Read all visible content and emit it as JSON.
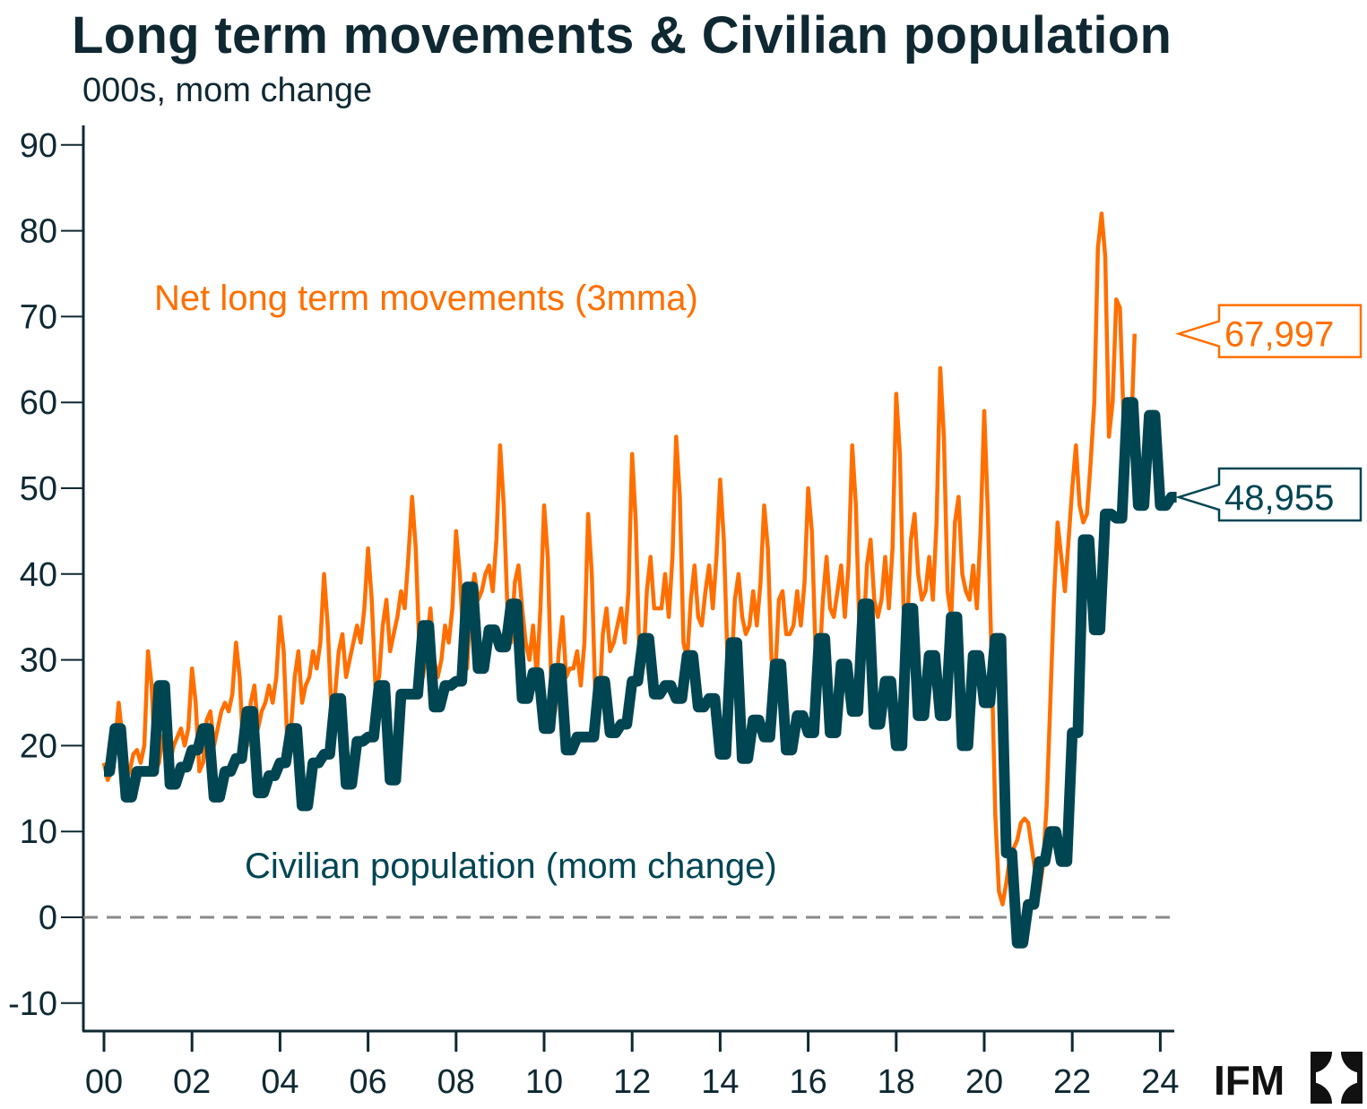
{
  "title": "Long term movements & Civilian population",
  "subtitle": "000s, mom change",
  "logo": {
    "text": "IFM",
    "icon": "ifm-logo-icon"
  },
  "colors": {
    "net_ltm": "#ff6f00",
    "civilian": "#004552",
    "axis": "#0f2832",
    "zero_line": "#8a8a8a"
  },
  "chart_data": {
    "type": "line",
    "title": "Long term movements & Civilian population",
    "subtitle": "000s, mom change",
    "xlabel": "",
    "ylabel": "000s, mom change",
    "ylim": [
      -10,
      90
    ],
    "xlim": [
      2000,
      2024.2
    ],
    "yticks": [
      -10,
      0,
      10,
      20,
      30,
      40,
      50,
      60,
      70,
      80,
      90
    ],
    "xticks": [
      2000,
      2002,
      2004,
      2006,
      2008,
      2010,
      2012,
      2014,
      2016,
      2018,
      2020,
      2022,
      2024
    ],
    "xtick_labels": [
      "00",
      "02",
      "04",
      "06",
      "08",
      "10",
      "12",
      "14",
      "16",
      "18",
      "20",
      "22",
      "24"
    ],
    "grid": false,
    "zero_line": "dashed",
    "series": [
      {
        "name": "Net long term movements (3mma)",
        "label": "Net long term movements (3mma)",
        "frequency": "monthly",
        "start": 2000.0,
        "last_value_label": "67,997",
        "values": [
          18,
          16,
          17,
          20,
          25,
          21,
          16,
          17,
          19,
          19.5,
          18,
          20,
          31,
          27,
          17,
          18,
          21,
          22,
          18,
          20,
          21,
          22,
          20,
          22,
          29,
          25,
          17,
          18,
          23,
          24,
          20,
          22,
          24,
          25,
          24,
          26,
          32,
          28,
          19,
          20,
          25,
          27,
          22,
          24,
          25,
          27,
          25,
          28,
          35,
          31,
          20,
          22,
          28,
          31,
          25,
          27,
          28,
          31,
          29,
          32,
          40,
          34,
          24,
          26,
          31,
          33,
          28,
          30,
          32,
          34,
          32,
          36,
          43,
          37,
          27,
          28,
          34,
          37,
          31,
          33,
          35,
          38,
          36,
          42,
          49,
          43,
          31,
          28,
          32,
          36,
          30,
          28,
          30,
          34,
          32,
          36,
          45,
          40,
          32,
          29,
          37,
          40,
          37,
          38,
          40,
          41,
          38,
          44,
          55,
          48,
          36,
          32,
          39,
          41,
          36,
          32,
          30,
          34,
          28,
          36,
          48,
          42,
          26,
          24,
          31,
          35,
          28,
          29,
          29,
          31,
          27,
          32,
          47,
          40,
          25,
          24,
          33,
          36,
          31,
          32,
          34,
          36,
          32,
          38,
          54,
          46,
          30,
          29,
          38,
          42,
          36,
          36,
          36,
          40,
          35,
          42,
          56,
          49,
          32,
          30,
          37,
          41,
          35,
          34,
          38,
          41,
          36,
          42,
          51,
          44,
          30,
          28,
          37,
          40,
          35,
          33,
          34,
          38,
          34,
          39,
          48,
          43,
          30,
          28,
          37,
          38,
          33,
          33,
          34,
          38,
          34,
          39,
          50,
          45,
          31,
          29,
          37,
          42,
          36,
          35,
          38,
          41,
          35,
          41,
          55,
          48,
          33,
          32,
          41,
          44,
          37,
          35,
          37,
          42,
          36,
          43,
          61,
          54,
          36,
          34,
          44,
          47,
          40,
          37,
          38,
          42,
          37,
          46,
          64,
          56,
          38,
          35,
          46,
          49,
          40,
          38,
          37,
          41,
          36,
          45,
          59,
          47,
          30,
          12,
          3,
          1.5,
          4,
          7,
          8,
          9,
          11,
          11.5,
          11,
          8,
          5,
          3,
          6,
          13,
          25,
          37,
          46,
          42,
          38,
          44,
          50,
          55,
          48,
          46,
          47,
          53,
          60,
          78,
          82,
          77,
          56,
          60,
          72,
          71,
          58,
          56,
          56,
          67.997
        ]
      },
      {
        "name": "Civilian population (mom change)",
        "label": "Civilian population (mom change)",
        "frequency": "quarterly-step",
        "start": 2000.0,
        "last_value_label": "48,955",
        "values": [
          17,
          22,
          14,
          17,
          17,
          27,
          15.5,
          17.5,
          19.5,
          22,
          14,
          17,
          18.5,
          24,
          14.5,
          16.5,
          18,
          22,
          13,
          18,
          19,
          25.5,
          15.5,
          20.5,
          21,
          27,
          16,
          26,
          26,
          34,
          24.5,
          27,
          27.5,
          38.5,
          29,
          33.5,
          31.5,
          36.5,
          25.5,
          28.5,
          22,
          29,
          19.5,
          21,
          21,
          27.5,
          21.5,
          22.5,
          27.5,
          32.5,
          26,
          27,
          25.5,
          30.5,
          24.5,
          25.5,
          19,
          32,
          18.5,
          23,
          21,
          29.5,
          19.5,
          23.5,
          21.5,
          32.5,
          21.5,
          29.5,
          24,
          36.5,
          22.5,
          27.5,
          20,
          36,
          23.5,
          30.5,
          23.5,
          35,
          20,
          30.5,
          25,
          32.5,
          7.5,
          -3,
          1.5,
          6.5,
          10,
          6.5,
          21.5,
          44,
          33.5,
          47,
          46.5,
          60,
          48,
          58.5,
          48,
          48.955
        ]
      }
    ],
    "annotations": [
      {
        "text": "Net long term movements (3mma)",
        "series": "Net long term movements (3mma)",
        "position": "upper-left"
      },
      {
        "text": "Civilian population (mom change)",
        "series": "Civilian population (mom change)",
        "position": "lower-middle"
      },
      {
        "text": "67,997",
        "series": "Net long term movements (3mma)",
        "type": "callout",
        "position": "right"
      },
      {
        "text": "48,955",
        "series": "Civilian population (mom change)",
        "type": "callout",
        "position": "right"
      }
    ],
    "legend": "inline-labels"
  }
}
